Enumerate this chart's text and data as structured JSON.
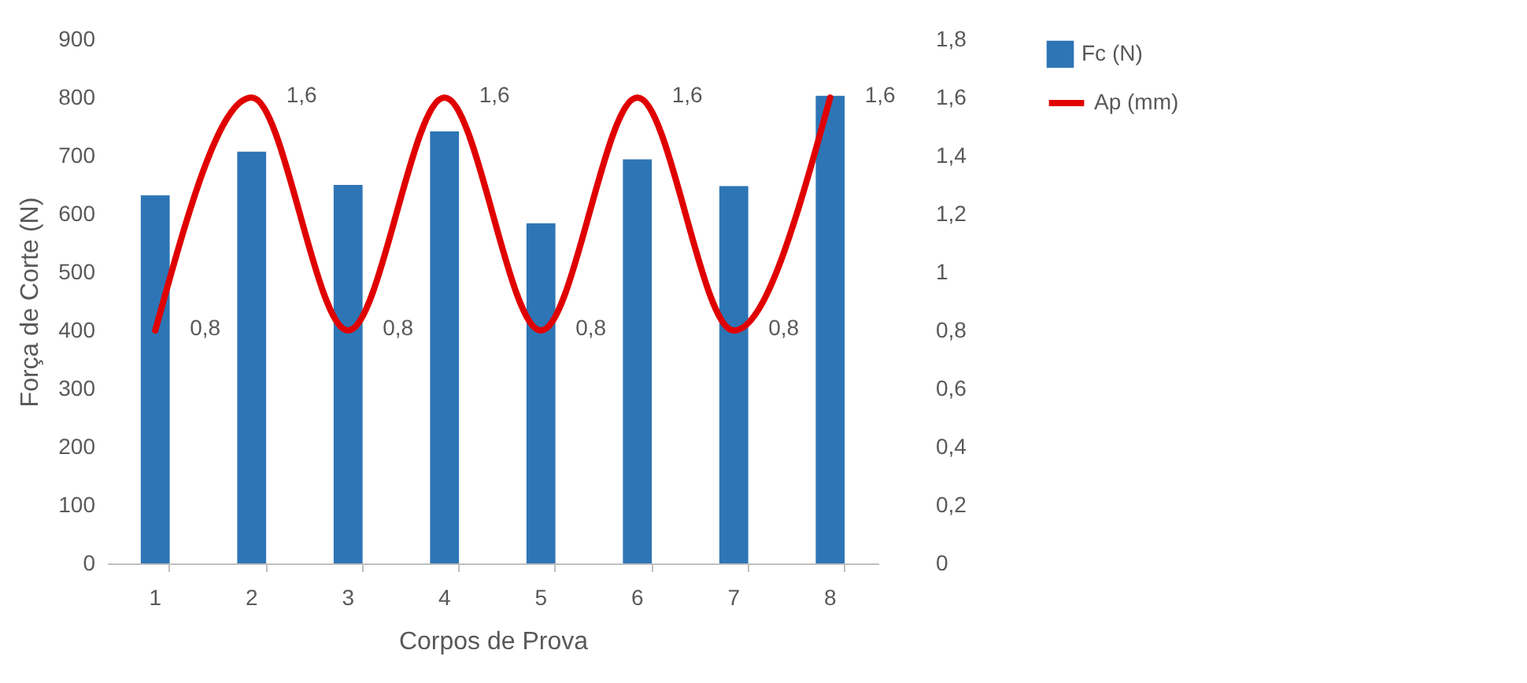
{
  "chart_data": {
    "type": "bar",
    "xlabel": "Corpos de Prova",
    "ylabel": "Força de Corte (N)",
    "categories": [
      "1",
      "2",
      "3",
      "4",
      "5",
      "6",
      "7",
      "8"
    ],
    "series": [
      {
        "name": "Fc (N)",
        "color": "#2e75b6",
        "values": [
          632,
          707,
          650,
          742,
          584,
          694,
          648,
          803
        ]
      },
      {
        "name": "Ap (mm)",
        "type": "line",
        "axis": "y2",
        "color": "#e00000",
        "values": [
          0.8,
          1.6,
          0.8,
          1.6,
          0.8,
          1.6,
          0.8,
          1.6
        ],
        "value_labels": [
          "0,8",
          "1,6",
          "0,8",
          "1,6",
          "0,8",
          "1,6",
          "0,8",
          "1,6"
        ]
      }
    ],
    "ylim": [
      0,
      900
    ],
    "yticks": [
      0,
      100,
      200,
      300,
      400,
      500,
      600,
      700,
      800,
      900
    ],
    "y2lim": [
      0,
      1.8
    ],
    "y2ticks": [
      0,
      {
        "value": 0.2,
        "label": "0,2"
      },
      {
        "value": 0.4,
        "label": "0,4"
      },
      {
        "value": 0.6,
        "label": "0,6"
      },
      {
        "value": 0.8,
        "label": "0,8"
      },
      1,
      {
        "value": 1.2,
        "label": "1,2"
      },
      {
        "value": 1.4,
        "label": "1,4"
      },
      {
        "value": 1.6,
        "label": "1,6"
      },
      {
        "value": 1.8,
        "label": "1,8"
      }
    ],
    "grid": false,
    "legend": "right",
    "marker": "none",
    "line_style": "solid"
  }
}
